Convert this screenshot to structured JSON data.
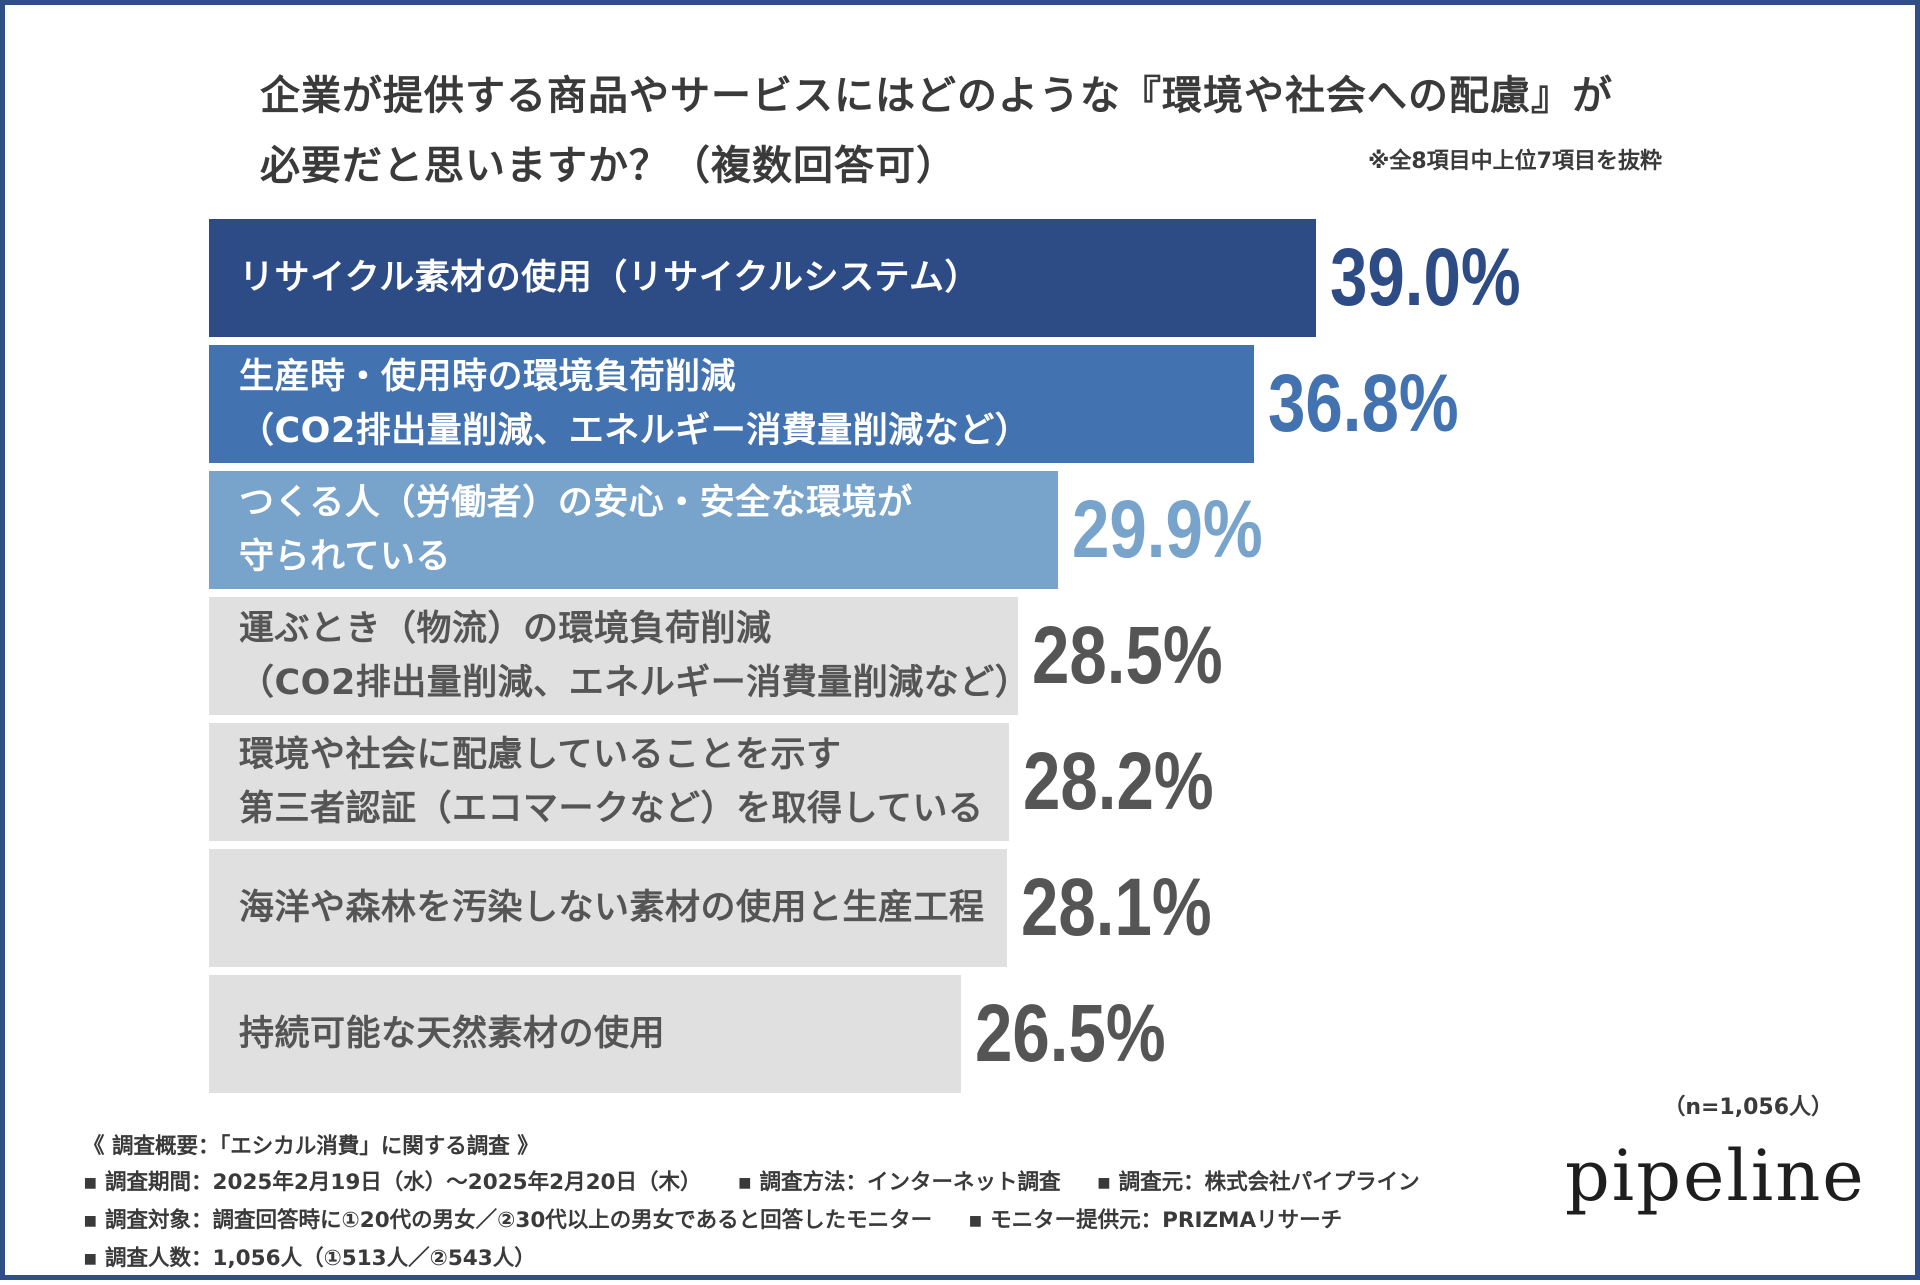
{
  "title": {
    "line1": "企業が提供する商品やサービスにはどのような『環境や社会への配慮』が",
    "line2": "必要だと思いますか？（複数回答可）",
    "note": "※全8項目中上位7項目を抜粋"
  },
  "chart_data": {
    "type": "bar",
    "orientation": "horizontal",
    "title": "企業が提供する商品やサービスにはどのような『環境や社会への配慮』が必要だと思いますか？（複数回答可）",
    "unit": "%",
    "xlim": [
      0,
      39.0
    ],
    "categories": [
      [
        "リサイクル素材の使用（リサイクルシステム）"
      ],
      [
        "生産時・使用時の環境負荷削減",
        "（CO2排出量削減、エネルギー消費量削減など）"
      ],
      [
        "つくる人（労働者）の安心・安全な環境が",
        "守られている"
      ],
      [
        "運ぶとき（物流）の環境負荷削減",
        "（CO2排出量削減、エネルギー消費量削減など）"
      ],
      [
        "環境や社会に配慮していることを示す",
        "第三者認証（エコマークなど）を取得している"
      ],
      [
        "海洋や森林を汚染しない素材の使用と生産工程"
      ],
      [
        "持続可能な天然素材の使用"
      ]
    ],
    "values": [
      39.0,
      36.8,
      29.9,
      28.5,
      28.2,
      28.1,
      26.5
    ],
    "value_labels": [
      "39.0%",
      "36.8%",
      "29.9%",
      "28.5%",
      "28.2%",
      "28.1%",
      "26.5%"
    ],
    "bar_colors": [
      "#2d4c86",
      "#4372b0",
      "#78a3cb",
      "#e0e0e0",
      "#e0e0e0",
      "#e0e0e0",
      "#e0e0e0"
    ],
    "label_colors": [
      "#ffffff",
      "#ffffff",
      "#ffffff",
      "#555555",
      "#555555",
      "#555555",
      "#555555"
    ],
    "value_colors": [
      "#2d4c86",
      "#4372b0",
      "#78a3cb",
      "#555555",
      "#555555",
      "#555555",
      "#555555"
    ]
  },
  "sample_size": "（n=1,056人）",
  "footer": {
    "heading": "《 調査概要：「エシカル消費」に関する調査 》",
    "period": "▪ 調査期間：2025年2月19日（水）〜2025年2月20日（木）",
    "method": "▪ 調査方法：インターネット調査",
    "source": "▪ 調査元：株式会社パイプライン",
    "target": "▪ 調査対象：調査回答時に①20代の男女／②30代以上の男女であると回答したモニター",
    "provider": "▪ モニター提供元：PRIZMAリサーチ",
    "count": "▪ 調査人数：1,056人（①513人／②543人）"
  },
  "logo": "pipeline"
}
